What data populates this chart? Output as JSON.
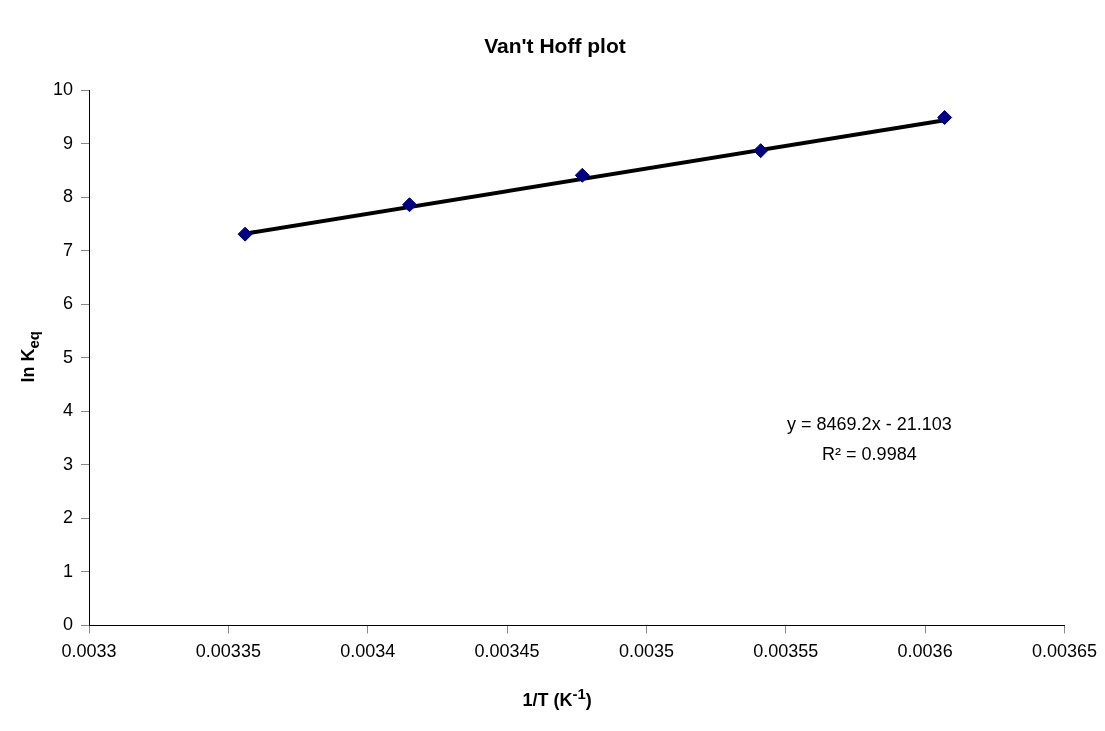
{
  "chart_data": {
    "type": "scatter",
    "title": "Van't Hoff plot",
    "xlabel": "1/T (K$^{-1}$)",
    "ylabel": "ln K$_{eq}$",
    "x": [
      0.003356,
      0.003415,
      0.003477,
      0.003541,
      0.003607
    ],
    "series": [
      {
        "color": "#000080",
        "values": [
          7.31,
          7.86,
          8.41,
          8.87,
          9.49
        ]
      },
      {
        "type": "line",
        "marker": "none",
        "color": "#000000",
        "x": [
          0.003356,
          0.003607
        ],
        "values": [
          7.32,
          9.44
        ]
      }
    ],
    "marker": "diamond",
    "line_style": "solid",
    "xlim": [
      0.0033,
      0.00365
    ],
    "xticks": [
      0.0033,
      0.00335,
      0.0034,
      0.00345,
      0.0035,
      0.00355,
      0.0036,
      0.00365
    ],
    "ylim": [
      0,
      10
    ],
    "yticks": [
      0,
      1,
      2,
      3,
      4,
      5,
      6,
      7,
      8,
      9,
      10
    ],
    "grid": false,
    "legend": false,
    "annotations": [
      "y = 8469.2x - 21.103",
      "R² = 0.9984"
    ]
  }
}
